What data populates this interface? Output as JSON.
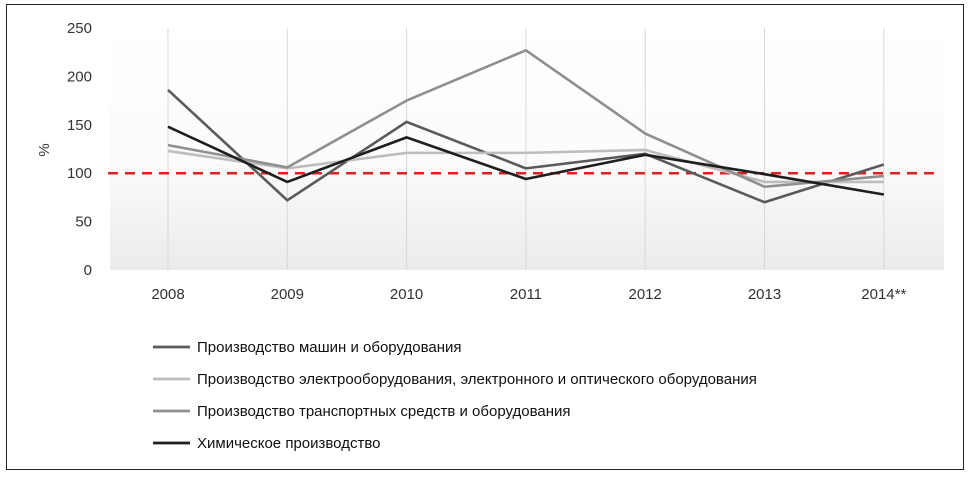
{
  "chart_data": {
    "type": "line",
    "ylabel": "%",
    "ylim": [
      0,
      250
    ],
    "yticks": [
      0,
      50,
      100,
      150,
      200,
      250
    ],
    "categories": [
      "2008",
      "2009",
      "2010",
      "2011",
      "2012",
      "2013",
      "2014**"
    ],
    "reference_line": {
      "value": 100,
      "color": "#e02020",
      "style": "dashed"
    },
    "series": [
      {
        "name": "Производство машин и оборудования",
        "color": "#5a5a5a",
        "values": [
          186,
          72,
          153,
          105,
          120,
          70,
          109
        ]
      },
      {
        "name": "Производство электрооборудования, электронного и оптического оборудования",
        "color": "#bdbdbd",
        "values": [
          123,
          105,
          121,
          121,
          124,
          91,
          91
        ]
      },
      {
        "name": "Производство транспортных средств и оборудования",
        "color": "#8f8f8f",
        "values": [
          129,
          106,
          175,
          227,
          141,
          86,
          97
        ]
      },
      {
        "name": "Химическое производство",
        "color": "#1e1e1e",
        "values": [
          148,
          91,
          137,
          94,
          119,
          99,
          78
        ]
      }
    ],
    "legend_position": "bottom-left",
    "grid": "vertical"
  }
}
